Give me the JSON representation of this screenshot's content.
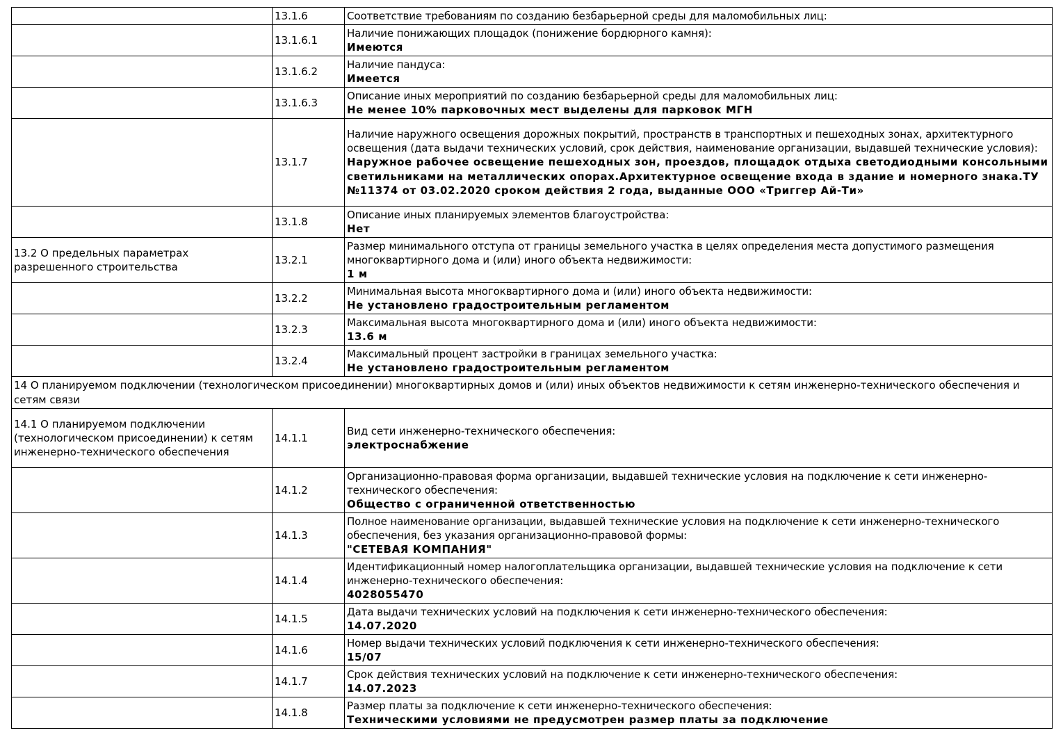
{
  "rows": [
    {
      "section": "",
      "num": "13.1.6",
      "label": "Соответствие требованиям по созданию безбарьерной среды для маломобильных лиц:",
      "value": "",
      "h": 25
    },
    {
      "section": "",
      "num": "13.1.6.1",
      "label": "Наличие понижающих площадок (понижение бордюрного камня):",
      "value": "Имеются",
      "h": 45
    },
    {
      "section": "",
      "num": "13.1.6.2",
      "label": "Наличие пандуса:",
      "value": "Имеется",
      "h": 45
    },
    {
      "section": "",
      "num": "13.1.6.3",
      "label": "Описание иных мероприятий по созданию безбарьерной среды для маломобильных лиц:",
      "value": "Не менее 10% парковочных мест выделены для парковок МГН",
      "h": 45
    },
    {
      "section": "",
      "num": "13.1.7",
      "label": "Наличие наружного освещения дорожных покрытий, пространств в транспортных и пешеходных зонах, архитектурного освещения (дата выдачи технических условий, срок действия, наименование организации, выдавшей технические условия):",
      "value": "Наружное рабочее освещение пешеходных зон, проездов, площадок отдыха светодиодными консольными светильниками на металлических опорах.Архитектурное освещение входа в здание и номерного знака.ТУ №11374 от 03.02.2020 сроком действия 2 года, выданные ООО «Триггер Ай-Ти»",
      "h": 126
    },
    {
      "section": "",
      "num": "13.1.8",
      "label": "Описание иных планируемых элементов благоустройства:",
      "value": "Нет",
      "h": 45
    },
    {
      "section": "13.2 О предельных параметрах разрешенного строительства",
      "num": "13.2.1",
      "label": "Размер минимального отступа от границы земельного участка в целях определения места допустимого размещения многоквартирного дома и (или) иного объекта недвижимости:",
      "value": "1 м",
      "h": 65
    },
    {
      "section": "",
      "num": "13.2.2",
      "label": "Минимальная высота многоквартирного дома и (или) иного объекта недвижимости:",
      "value": "Не установлено градостроительным регламентом",
      "h": 45
    },
    {
      "section": "",
      "num": "13.2.3",
      "label": "Максимальная высота многоквартирного дома и (или) иного объекта недвижимости:",
      "value": "13.6 м",
      "h": 45
    },
    {
      "section": "",
      "num": "13.2.4",
      "label": "Максимальный процент застройки в границах земельного участка:",
      "value": "Не установлено градостроительным регламентом",
      "h": 45
    },
    {
      "full": "14 О планируемом подключении (технологическом присоединении) многоквартирных домов и (или) иных объектов недвижимости к сетям инженерно-технического обеспечения и сетям связи",
      "h": 46
    },
    {
      "section": "14.1 О планируемом подключении (технологическом присоединении) к сетям инженерно-технического обеспечения",
      "num": "14.1.1",
      "label": "Вид сети инженерно-технического обеспечения:",
      "value": "электроснабжение",
      "h": 85
    },
    {
      "section": "",
      "num": "14.1.2",
      "label": "Организационно-правовая форма организации, выдавшей технические условия на подключение к сети инженерно-технического обеспечения:",
      "value": "Общество с ограниченной ответственностью",
      "h": 65
    },
    {
      "section": "",
      "num": "14.1.3",
      "label": "Полное наименование организации, выдавшей технические условия на подключение к сети инженерно-технического обеспечения, без указания организационно-правовой формы:",
      "value": "\"СЕТЕВАЯ КОМПАНИЯ\"",
      "h": 65
    },
    {
      "section": "",
      "num": "14.1.4",
      "label": "Идентификационный номер налогоплательщика организации, выдавшей технические условия на подключение к сети инженерно-технического обеспечения:",
      "value": "4028055470",
      "h": 65
    },
    {
      "section": "",
      "num": "14.1.5",
      "label": "Дата выдачи технических условий на подключения к сети инженерно-технического обеспечения:",
      "value": "14.07.2020",
      "h": 45
    },
    {
      "section": "",
      "num": "14.1.6",
      "label": "Номер выдачи технических условий подключения к сети инженерно-технического обеспечения:",
      "value": "15/07",
      "h": 45
    },
    {
      "section": "",
      "num": "14.1.7",
      "label": "Срок действия технических условий на подключение к сети инженерно-технического обеспечения:",
      "value": "14.07.2023",
      "h": 45
    },
    {
      "section": "",
      "num": "14.1.8",
      "label": "Размер платы за подключение к сети инженерно-технического обеспечения:",
      "value": "Техническими условиями не предусмотрен размер платы за подключение",
      "h": 45
    }
  ]
}
